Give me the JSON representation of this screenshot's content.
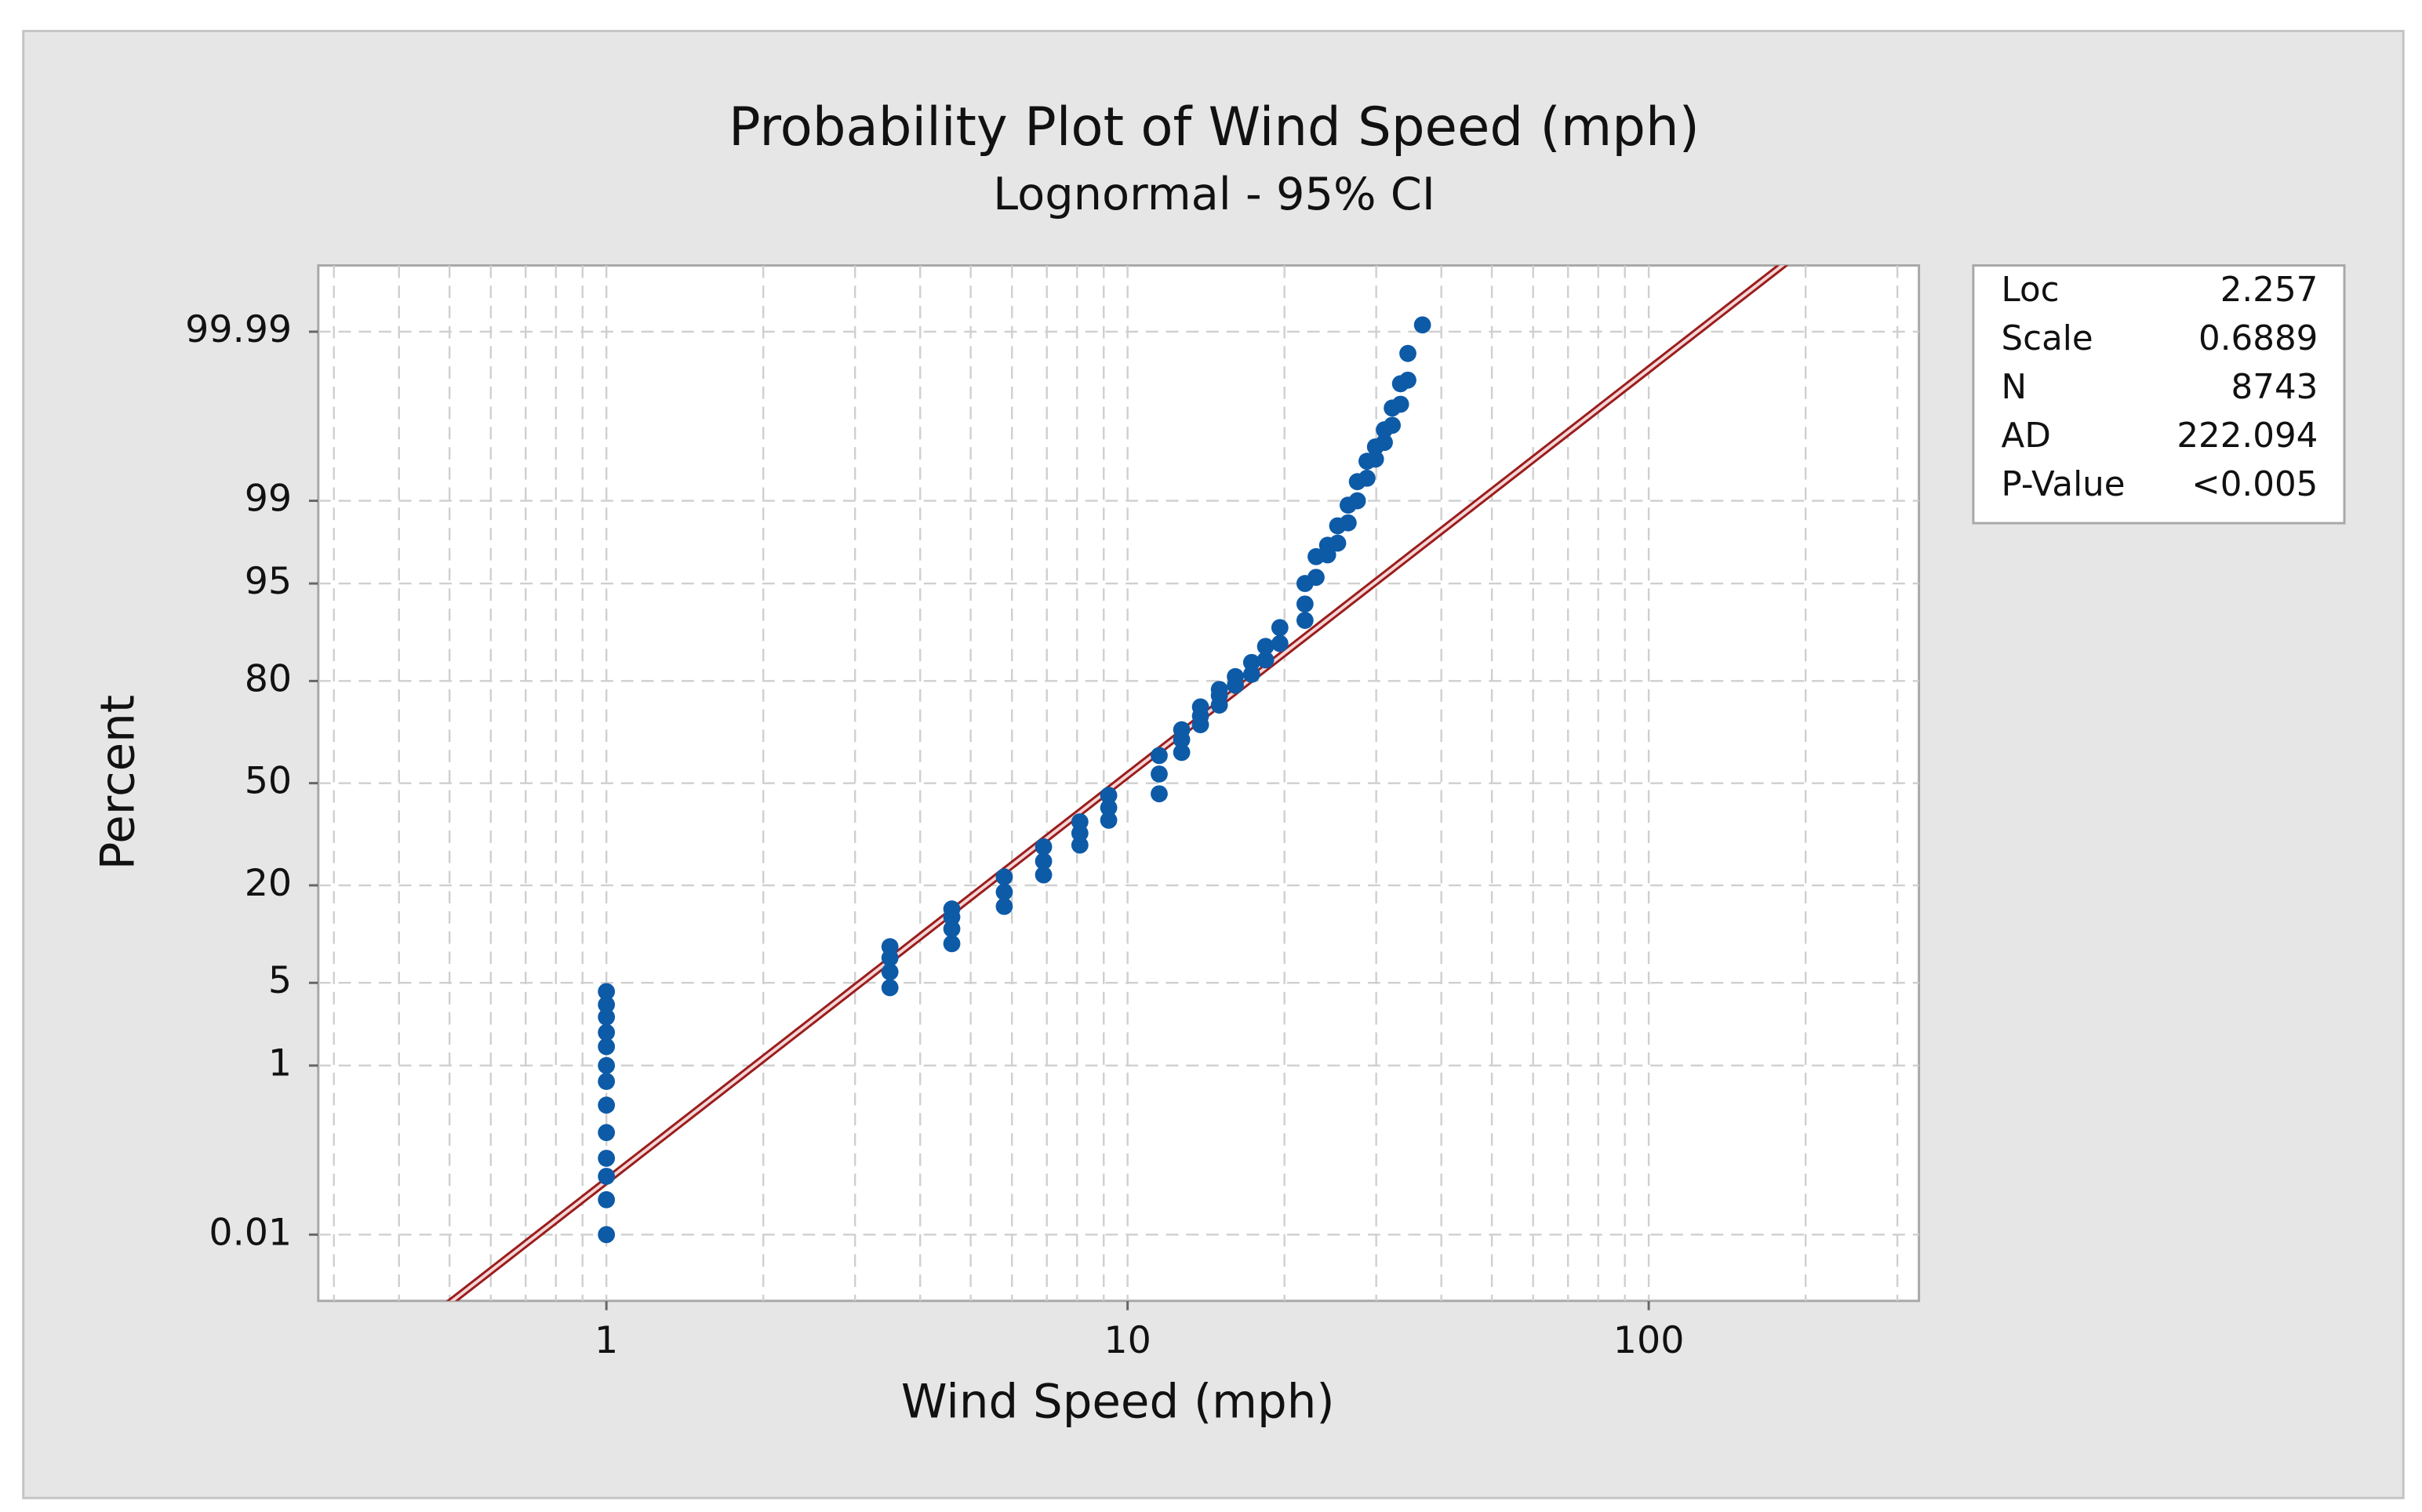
{
  "chart_data": {
    "type": "probability",
    "title": "Probability Plot of Wind Speed (mph)",
    "subtitle": "Lognormal - 95% CI",
    "x_label": "Wind Speed (mph)",
    "y_label": "Percent",
    "x_scale": "log",
    "y_scale": "normal-probability",
    "xlim": [
      0.28,
      330
    ],
    "ylim": [
      0.001,
      99.999
    ],
    "xticks": [
      1,
      10,
      100
    ],
    "xgrid": [
      0.3,
      0.4,
      0.5,
      0.6,
      0.7,
      0.8,
      0.9,
      2,
      3,
      4,
      5,
      6,
      7,
      8,
      9,
      20,
      30,
      40,
      50,
      60,
      70,
      80,
      90,
      200,
      300
    ],
    "yticks": [
      0.01,
      1,
      5,
      20,
      50,
      80,
      95,
      99,
      99.99
    ],
    "grid": true,
    "color": "#0d5aa7",
    "fit_color": "#9b1c1c",
    "x": [
      1,
      1,
      1,
      1,
      1,
      1,
      1,
      1,
      1,
      1,
      1,
      1,
      1,
      3.5,
      3.5,
      3.5,
      3.5,
      4.6,
      4.6,
      4.6,
      4.6,
      5.8,
      5.8,
      5.8,
      6.9,
      6.9,
      6.9,
      8.1,
      8.1,
      8.1,
      9.2,
      9.2,
      9.2,
      11.5,
      11.5,
      11.5,
      12.7,
      12.7,
      12.7,
      13.8,
      13.8,
      13.8,
      15,
      15,
      15,
      16.1,
      16.1,
      17.3,
      17.3,
      18.4,
      18.4,
      19.6,
      19.6,
      21.9,
      21.9,
      21.9,
      23,
      23,
      24.2,
      24.2,
      25.3,
      25.3,
      26.5,
      26.5,
      27.6,
      27.6,
      28.8,
      28.8,
      29.9,
      29.9,
      31.1,
      31.1,
      32.2,
      32.2,
      33.4,
      33.4,
      34.5,
      34.5,
      36.8
    ],
    "values": [
      0.01,
      0.03,
      0.06,
      0.1,
      0.2,
      0.4,
      0.7,
      1,
      1.5,
      2,
      2.7,
      3.4,
      4.3,
      4.6,
      6,
      7.5,
      8.9,
      9.3,
      11.5,
      13.5,
      15,
      15.5,
      18.5,
      22,
      22.5,
      26,
      30,
      30.5,
      34,
      37.5,
      38,
      42,
      46,
      46.5,
      53,
      59,
      60,
      64,
      67,
      68.5,
      71,
      73.5,
      74,
      76.5,
      78,
      79,
      81,
      81.5,
      84,
      84.5,
      87,
      87.5,
      90,
      91,
      93,
      95,
      95.5,
      96.9,
      97,
      97.5,
      97.6,
      98.3,
      98.4,
      98.9,
      99,
      99.35,
      99.4,
      99.6,
      99.62,
      99.72,
      99.75,
      99.82,
      99.84,
      99.9,
      99.91,
      99.95,
      99.955,
      99.98,
      99.992
    ],
    "stats": [
      {
        "label": "Loc",
        "value": 2.257
      },
      {
        "label": "Scale",
        "value": 0.6889
      },
      {
        "label": "N",
        "value": 8743
      },
      {
        "label": "AD",
        "value": 222.094
      },
      {
        "label": "P-Value",
        "value": "<0.005"
      }
    ]
  }
}
